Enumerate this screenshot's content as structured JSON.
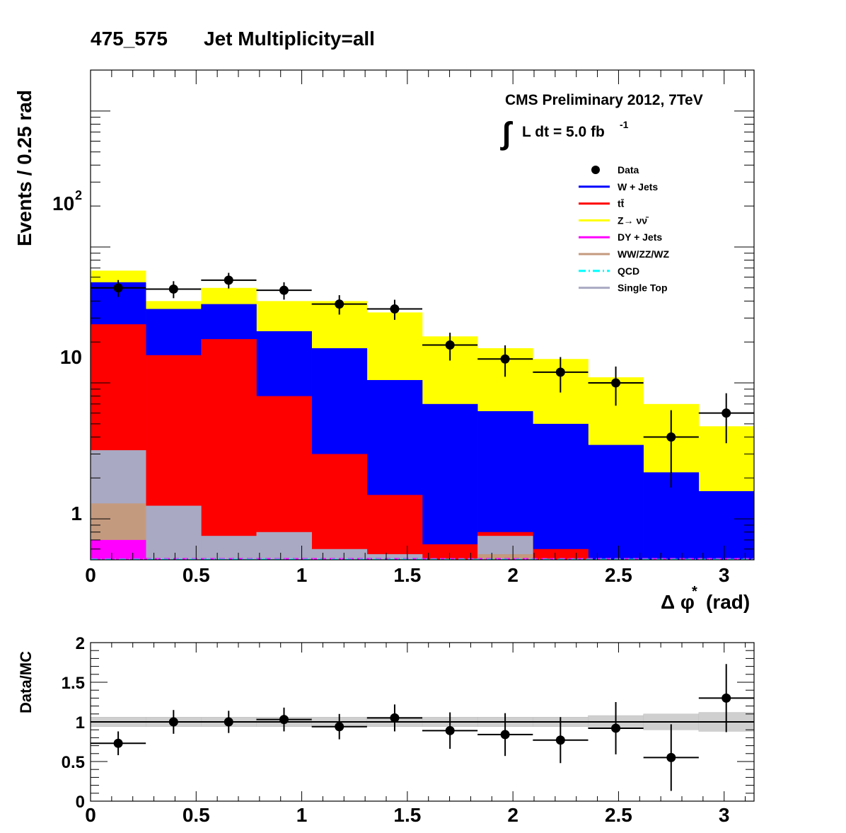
{
  "title": {
    "mass_bin": "475_575",
    "selection": "Jet Multiplicity=all"
  },
  "annotations": {
    "experiment": "CMS Preliminary 2012, 7TeV",
    "integral_sign": "∫",
    "lumi_prefix": "L dt = 5.0 fb",
    "lumi_exponent": "-1"
  },
  "main_axes": {
    "ylabel": "Events / 0.25 rad",
    "xlabel_symbol": "Δ φ",
    "xlabel_superscript": "*",
    "xlabel_unit": "(rad)",
    "ytick_labels": {
      "t1": "1",
      "t10": "10",
      "t100_base": "10",
      "t100_exp": "2"
    }
  },
  "ratio_axes": {
    "ylabel": "Data/MC"
  },
  "legend": [
    {
      "key": "data",
      "label": "Data",
      "color": "#000000",
      "style": "marker"
    },
    {
      "key": "wjets",
      "label": "W + Jets",
      "color": "#0000ff",
      "style": "line"
    },
    {
      "key": "ttbar",
      "label": "tt̄",
      "color": "#ff0000",
      "style": "line"
    },
    {
      "key": "znunu",
      "label": "Z→ νν̄",
      "color": "#ffff00",
      "style": "line"
    },
    {
      "key": "dy",
      "label": "DY + Jets",
      "color": "#ff00ff",
      "style": "line"
    },
    {
      "key": "diboson",
      "label": "WW/ZZ/WZ",
      "color": "#c49a7e",
      "style": "line"
    },
    {
      "key": "qcd",
      "label": "QCD",
      "color": "#00ffff",
      "style": "dashdot"
    },
    {
      "key": "singletop",
      "label": "Single Top",
      "color": "#a9a9c3",
      "style": "line"
    }
  ],
  "chart_data": [
    {
      "type": "bar",
      "subtype": "stacked-histogram",
      "ylog": true,
      "xlim": [
        0,
        3.1416
      ],
      "ylim": [
        0.5,
        2000
      ],
      "xticks": [
        0,
        0.5,
        1,
        1.5,
        2,
        2.5,
        3
      ],
      "xtick_labels": [
        "0",
        "0.5",
        "1",
        "1.5",
        "2",
        "2.5",
        "3"
      ],
      "bin_edges": [
        0,
        0.2618,
        0.5236,
        0.7854,
        1.0472,
        1.309,
        1.5708,
        1.8326,
        2.0944,
        2.3562,
        2.618,
        2.8798,
        3.1416
      ],
      "stack_totals": {
        "single_top": [
          3.2,
          1.25,
          0.75,
          0.8,
          0.6,
          0.55,
          0.5,
          0.75,
          0.5,
          0.5,
          0.5,
          0.5
        ],
        "ttbar": [
          27,
          16,
          21,
          8,
          3,
          1.5,
          0.65,
          0.8,
          0.6,
          0.5,
          0.5,
          0.5
        ],
        "wjets": [
          55,
          35,
          38,
          24,
          18,
          10.5,
          7,
          6.2,
          5,
          3.5,
          2.2,
          1.6
        ],
        "znunu": [
          67,
          40,
          50,
          40,
          40,
          33,
          22,
          18,
          15,
          11,
          7,
          4.8
        ]
      },
      "stack_bottom": {
        "dy": [
          0.7,
          0.5,
          0.5,
          0.5,
          0.5,
          0.5,
          0.5,
          0.5,
          0.5,
          0.5,
          0.5,
          0.5
        ],
        "diboson": [
          1.3,
          0.5,
          0.5,
          0.5,
          0.5,
          0.5,
          0.5,
          0.55,
          0.5,
          0.5,
          0.5,
          0.5
        ],
        "qcd": [
          0.51,
          0.51,
          0.51,
          0.51,
          0.51,
          0.51,
          0.51,
          0.51,
          0.51,
          0.51,
          0.51,
          0.51
        ]
      },
      "stack_colors": {
        "znunu": "#ffff00",
        "wjets": "#0000ff",
        "ttbar": "#ff0000",
        "single_top": "#a9a9c3",
        "diboson": "#c49a7e",
        "dy": "#ff00ff",
        "qcd": "#00ffff"
      },
      "data_points": {
        "x": [
          0.131,
          0.393,
          0.654,
          0.916,
          1.178,
          1.44,
          1.702,
          1.963,
          2.225,
          2.487,
          2.749,
          3.01
        ],
        "y": [
          50,
          49,
          57,
          48,
          38,
          35,
          19,
          15,
          12,
          10,
          4,
          6
        ],
        "yerr_low": [
          7.1,
          7,
          7.5,
          7,
          6.2,
          5.9,
          4.4,
          3.9,
          3.5,
          3.2,
          2.3,
          2.4
        ],
        "yerr_high": [
          7.1,
          7,
          7.5,
          7,
          6.2,
          5.9,
          4.4,
          3.9,
          3.5,
          3.2,
          2.3,
          2.4
        ]
      }
    },
    {
      "type": "scatter",
      "subtype": "ratio",
      "ylim": [
        0,
        2
      ],
      "xlim": [
        0,
        3.1416
      ],
      "yticks": [
        0,
        0.5,
        1,
        1.5,
        2
      ],
      "ytick_labels": [
        "0",
        "0.5",
        "1",
        "1.5",
        "2"
      ],
      "xticks": [
        0,
        0.5,
        1,
        1.5,
        2,
        2.5,
        3
      ],
      "xtick_labels": [
        "0",
        "0.5",
        "1",
        "1.5",
        "2",
        "2.5",
        "3"
      ],
      "reference_line": 1,
      "x": [
        0.131,
        0.393,
        0.654,
        0.916,
        1.178,
        1.44,
        1.702,
        1.963,
        2.225,
        2.487,
        2.749,
        3.01
      ],
      "y": [
        0.73,
        1.0,
        1.0,
        1.03,
        0.94,
        1.05,
        0.89,
        0.84,
        0.77,
        0.92,
        0.55,
        1.3
      ],
      "yerr": [
        0.15,
        0.15,
        0.14,
        0.15,
        0.16,
        0.17,
        0.23,
        0.27,
        0.29,
        0.33,
        0.42,
        0.43
      ],
      "band_halfwidth": [
        0.06,
        0.06,
        0.06,
        0.06,
        0.06,
        0.06,
        0.06,
        0.06,
        0.06,
        0.08,
        0.1,
        0.12
      ]
    }
  ]
}
